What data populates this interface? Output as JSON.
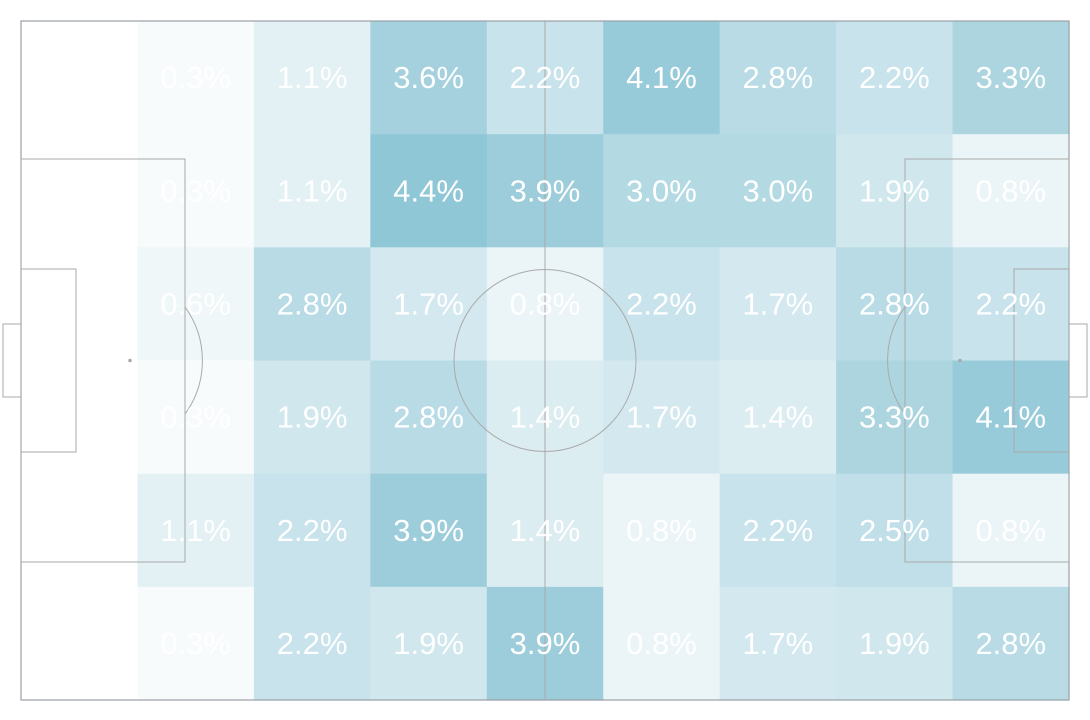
{
  "chart_data": {
    "type": "heatmap",
    "title": "",
    "columns": 9,
    "rows": 6,
    "cmap_colors": [
      "#ffffff",
      "#90c7d6"
    ],
    "values": [
      [
        0.0,
        0.3,
        1.1,
        3.6,
        2.2,
        4.1,
        2.8,
        2.2,
        3.3
      ],
      [
        0.0,
        0.3,
        1.1,
        4.4,
        3.9,
        3.0,
        3.0,
        1.9,
        0.8
      ],
      [
        0.0,
        0.6,
        2.8,
        1.7,
        0.8,
        2.2,
        1.7,
        2.8,
        2.2
      ],
      [
        0.0,
        0.3,
        1.9,
        2.8,
        1.4,
        1.7,
        1.4,
        3.3,
        4.1
      ],
      [
        0.0,
        1.1,
        2.2,
        3.9,
        1.4,
        0.8,
        2.2,
        2.5,
        0.8
      ],
      [
        0.0,
        0.3,
        2.2,
        1.9,
        3.9,
        0.8,
        1.7,
        1.9,
        2.8
      ]
    ],
    "labels": [
      [
        "",
        "0.3%",
        "1.1%",
        "3.6%",
        "2.2%",
        "4.1%",
        "2.8%",
        "2.2%",
        "3.3%"
      ],
      [
        "",
        "0.3%",
        "1.1%",
        "4.4%",
        "3.9%",
        "3.0%",
        "3.0%",
        "1.9%",
        "0.8%"
      ],
      [
        "",
        "0.6%",
        "2.8%",
        "1.7%",
        "0.8%",
        "2.2%",
        "1.7%",
        "2.8%",
        "2.2%"
      ],
      [
        "",
        "0.3%",
        "1.9%",
        "2.8%",
        "1.4%",
        "1.7%",
        "1.4%",
        "3.3%",
        "4.1%"
      ],
      [
        "",
        "1.1%",
        "2.2%",
        "3.9%",
        "1.4%",
        "0.8%",
        "2.2%",
        "2.5%",
        "0.8%"
      ],
      [
        "",
        "0.3%",
        "2.2%",
        "1.9%",
        "3.9%",
        "0.8%",
        "1.7%",
        "1.9%",
        "2.8%"
      ]
    ],
    "value_range": [
      0,
      4.4
    ],
    "grid": false,
    "legend": "none"
  }
}
